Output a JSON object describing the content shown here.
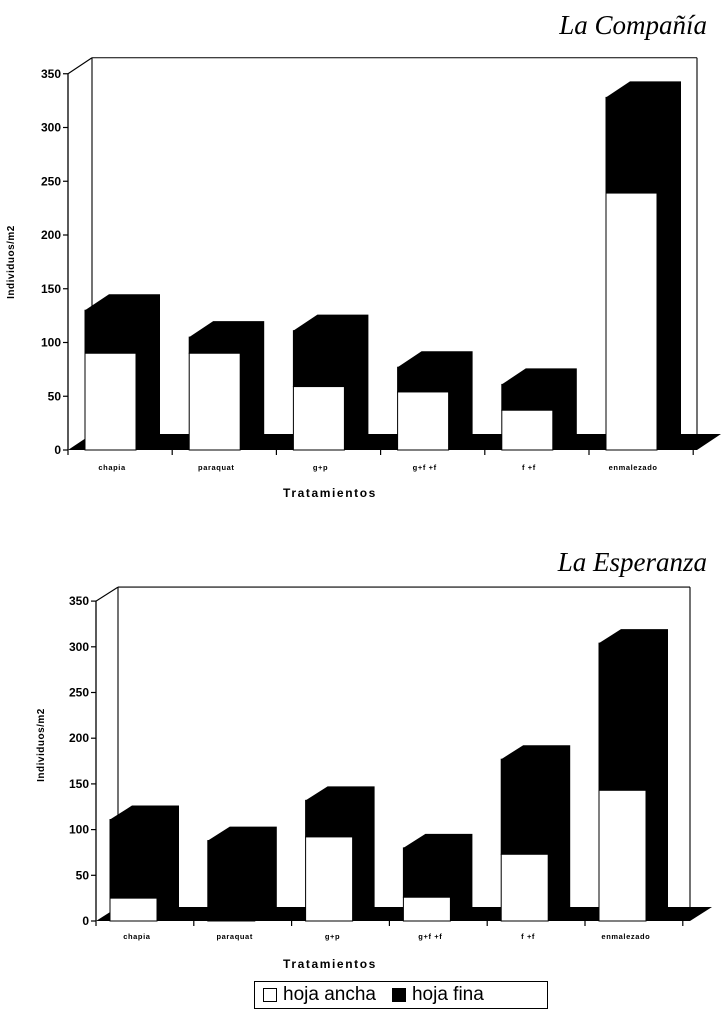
{
  "chart_data": [
    {
      "type": "bar",
      "title": "La Compañía",
      "xlabel": "Tratamientos",
      "ylabel": "Individuos/m2",
      "ylim": [
        0,
        350
      ],
      "yticks": [
        "0",
        "50",
        "100",
        "150",
        "200",
        "250",
        "300",
        "350"
      ],
      "categories": [
        "chapia",
        "paraquat",
        "g+p",
        "g+f +f",
        "f +f",
        "enmalezado"
      ],
      "stacked": true,
      "series": [
        {
          "name": "hoja ancha",
          "color": "#ffffff",
          "values": [
            90,
            90,
            59,
            54,
            37,
            239
          ]
        },
        {
          "name": "hoja fina",
          "color": "#000000",
          "values": [
            40,
            15,
            52,
            23,
            24,
            89
          ]
        }
      ]
    },
    {
      "type": "bar",
      "title": "La Esperanza",
      "xlabel": "Tratamientos",
      "ylabel": "Individuos/m2",
      "ylim": [
        0,
        350
      ],
      "yticks": [
        "0",
        "50",
        "100",
        "150",
        "200",
        "250",
        "300",
        "350"
      ],
      "categories": [
        "chapia",
        "paraquat",
        "g+p",
        "g+f +f",
        "f +f",
        "enmalezado"
      ],
      "stacked": true,
      "series": [
        {
          "name": "hoja ancha",
          "color": "#ffffff",
          "values": [
            25,
            0,
            92,
            26,
            73,
            143
          ]
        },
        {
          "name": "hoja fina",
          "color": "#000000",
          "values": [
            86,
            88,
            40,
            54,
            104,
            161
          ]
        }
      ]
    }
  ],
  "legend": {
    "items": [
      {
        "label": "hoja ancha",
        "swatch": "white"
      },
      {
        "label": "hoja fina",
        "swatch": "black"
      }
    ]
  }
}
